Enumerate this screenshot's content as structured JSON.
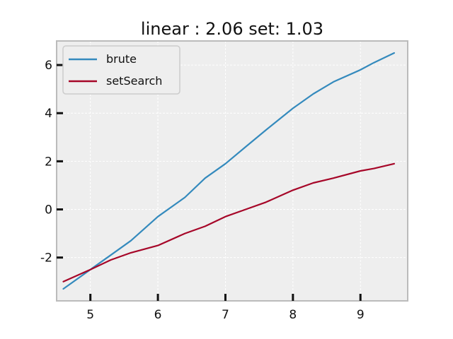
{
  "chart_data": {
    "type": "line",
    "title": "linear : 2.06 set: 1.03",
    "xlabel": "",
    "ylabel": "",
    "xlim": [
      4.5,
      9.7
    ],
    "ylim": [
      -3.8,
      7.0
    ],
    "xticks": [
      5,
      6,
      7,
      8,
      9
    ],
    "yticks": [
      -2,
      0,
      2,
      4,
      6
    ],
    "xtick_labels": [
      "5",
      "6",
      "7",
      "8",
      "9"
    ],
    "ytick_labels": [
      "-2",
      "0",
      "2",
      "4",
      "6"
    ],
    "grid": true,
    "legend_position": "top-left",
    "series": [
      {
        "name": "brute",
        "color": "#348ABD",
        "x": [
          4.6,
          5.0,
          5.3,
          5.6,
          6.0,
          6.4,
          6.7,
          7.0,
          7.3,
          7.6,
          8.0,
          8.3,
          8.6,
          9.0,
          9.2,
          9.5
        ],
        "y": [
          -3.3,
          -2.5,
          -1.9,
          -1.3,
          -0.3,
          0.5,
          1.3,
          1.9,
          2.6,
          3.3,
          4.2,
          4.8,
          5.3,
          5.8,
          6.1,
          6.5
        ]
      },
      {
        "name": "setSearch",
        "color": "#A60628",
        "x": [
          4.6,
          5.0,
          5.3,
          5.6,
          6.0,
          6.4,
          6.7,
          7.0,
          7.3,
          7.6,
          8.0,
          8.3,
          8.6,
          9.0,
          9.2,
          9.5
        ],
        "y": [
          -3.0,
          -2.5,
          -2.1,
          -1.8,
          -1.5,
          -1.0,
          -0.7,
          -0.3,
          0.0,
          0.3,
          0.8,
          1.1,
          1.3,
          1.6,
          1.7,
          1.9
        ]
      }
    ]
  },
  "colors": {
    "axes_background": "#EEEEEE",
    "grid": "#FFFFFF",
    "spine": "#BBBBBB",
    "text": "#111111"
  }
}
